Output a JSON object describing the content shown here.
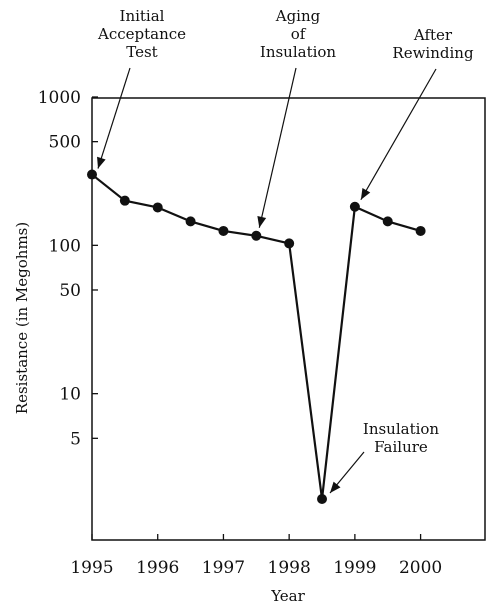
{
  "chart_data": {
    "type": "line",
    "xlabel": "Year",
    "ylabel": "Resistance (in Megohms)",
    "yscale": "log",
    "xlim": [
      1995,
      2000.98
    ],
    "ylim": [
      1,
      1000
    ],
    "x_ticks": [
      "1995",
      "1996",
      "1997",
      "1998",
      "1999",
      "2000"
    ],
    "y_ticks": [
      {
        "value": 1000,
        "label": "1000"
      },
      {
        "value": 500,
        "label": "500"
      },
      {
        "value": 100,
        "label": "100"
      },
      {
        "value": 50,
        "label": "50"
      },
      {
        "value": 10,
        "label": "10"
      },
      {
        "value": 5,
        "label": "5"
      }
    ],
    "grid": false,
    "series": [
      {
        "x": [
          1995.0,
          1995.5,
          1996.0,
          1996.5,
          1997.0,
          1997.5,
          1998.0,
          1998.5,
          1999.0,
          1999.5,
          2000.0
        ],
        "values": [
          300,
          200,
          180,
          145,
          125,
          116,
          103,
          1.95,
          182,
          145,
          125
        ]
      }
    ],
    "annotations": [
      {
        "lines": [
          "Initial",
          "Acceptance",
          "Test"
        ],
        "x": 1995.0,
        "y": 300
      },
      {
        "lines": [
          "Aging",
          "of",
          "Insulation"
        ],
        "x": 1997.5,
        "y": 116
      },
      {
        "lines": [
          "After",
          "Rewinding"
        ],
        "x": 1999.0,
        "y": 182
      },
      {
        "lines": [
          "Insulation",
          "Failure"
        ],
        "x": 1998.5,
        "y": 1.95
      }
    ]
  }
}
